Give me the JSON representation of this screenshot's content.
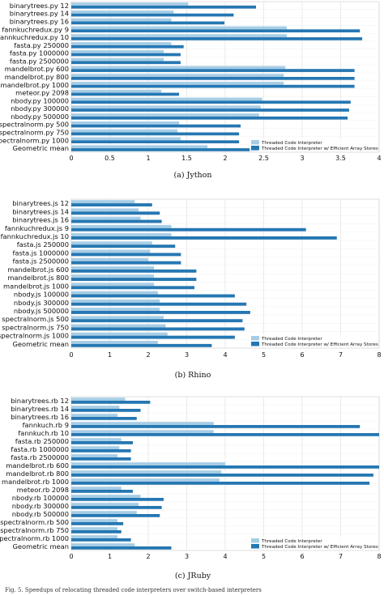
{
  "colors": {
    "series1": "#a6cde6",
    "series2": "#2577b2",
    "grid": "#dcdcdc",
    "frame": "#bfbfbf"
  },
  "chart_data": [
    {
      "type": "bar",
      "orientation": "horizontal",
      "caption": "(a) Jython",
      "categories": [
        "binarytrees.py 12",
        "binarytrees.py 14",
        "binarytrees.py 16",
        "fannkuchredux.py 9",
        "fannkuchredux.py 10",
        "fasta.py 250000",
        "fasta.py 1000000",
        "fasta.py 2500000",
        "mandelbrot.py 600",
        "mandelbrot.py 800",
        "mandelbrot.py 1000",
        "meteor.py 2098",
        "nbody.py 100000",
        "nbody.py 300000",
        "nbody.py 500000",
        "spectralnorm.py 500",
        "spectralnorm.py 750",
        "spectralnorm.py 1000",
        "Geometric mean"
      ],
      "series": [
        {
          "name": "Threaded Code Interpreter",
          "values": [
            1.52,
            1.33,
            1.3,
            2.8,
            2.8,
            1.3,
            1.2,
            1.2,
            2.78,
            2.76,
            2.76,
            1.17,
            2.48,
            2.46,
            2.44,
            1.4,
            1.38,
            1.42,
            1.77
          ]
        },
        {
          "name": "Threaded Code Interpreter w/ Efficient Array Stores",
          "values": [
            2.4,
            2.11,
            1.99,
            3.75,
            3.78,
            1.46,
            1.42,
            1.42,
            3.68,
            3.68,
            3.68,
            1.4,
            3.63,
            3.61,
            3.59,
            2.2,
            2.18,
            2.18,
            2.42
          ]
        }
      ],
      "xlim": [
        0,
        4
      ],
      "xticks": [
        "0",
        "0.5",
        "1",
        "1.5",
        "2",
        "2.5",
        "3",
        "3.5",
        "4"
      ],
      "legend": "bottom-right"
    },
    {
      "type": "bar",
      "orientation": "horizontal",
      "caption": "(b) Rhino",
      "categories": [
        "binarytrees.js 12",
        "binarytrees.js 14",
        "binarytrees.js 16",
        "fannkuchredux.js 9",
        "fannkuchredux.js 10",
        "fasta.js 250000",
        "fasta.js 1000000",
        "fasta.js 2500000",
        "mandelbrot.js 600",
        "mandelbrot.js 800",
        "mandelbrot.js 1000",
        "nbody.js 100000",
        "nbody.js 300000",
        "nbody.js 500000",
        "spectralnorm.js 500",
        "spectralnorm.js 750",
        "spectralnorm.js 1000",
        "Geometric mean"
      ],
      "series": [
        {
          "name": "Threaded Code Interpreter",
          "values": [
            1.65,
            1.75,
            1.8,
            2.6,
            2.6,
            2.1,
            2.05,
            2.0,
            2.15,
            2.15,
            2.15,
            2.25,
            2.3,
            2.3,
            2.4,
            2.45,
            2.5,
            2.25
          ]
        },
        {
          "name": "Threaded Code Interpreter w/ Efficient Array Stores",
          "values": [
            2.1,
            2.3,
            2.35,
            6.1,
            6.9,
            2.7,
            2.85,
            2.85,
            3.25,
            3.25,
            3.2,
            4.25,
            4.55,
            4.65,
            4.45,
            4.5,
            4.25,
            3.65
          ]
        }
      ],
      "xlim": [
        0,
        8
      ],
      "xticks": [
        "0",
        "1",
        "2",
        "3",
        "4",
        "5",
        "6",
        "7",
        "8"
      ],
      "legend": "bottom-right"
    },
    {
      "type": "bar",
      "orientation": "horizontal",
      "caption": "(c) JRuby",
      "categories": [
        "binarytrees.rb 12",
        "binarytrees.rb 14",
        "binarytrees.rb 16",
        "fannkuch.rb 9",
        "fannkuch.rb 10",
        "fasta.rb 250000",
        "fasta.rb 1000000",
        "fasta.rb 2500000",
        "mandelbrot.rb 600",
        "mandelbrot.rb 800",
        "mandelbrot.rb 1000",
        "meteor.rb 2098",
        "nbody.rb 100000",
        "nbody.rb 300000",
        "nbody.rb 500000",
        "spectralnorm.rb 500",
        "spectralnorm.rb 750",
        "spectralnorm.rb 1000",
        "Geometric mean"
      ],
      "series": [
        {
          "name": "Threaded Code Interpreter",
          "values": [
            1.4,
            1.25,
            1.2,
            3.7,
            3.7,
            1.3,
            1.25,
            1.2,
            4.0,
            3.9,
            3.85,
            1.3,
            1.8,
            1.75,
            1.7,
            1.2,
            1.2,
            1.2,
            1.65
          ]
        },
        {
          "name": "Threaded Code Interpreter w/ Efficient Array Stores",
          "values": [
            2.05,
            1.8,
            1.7,
            7.5,
            8.0,
            1.6,
            1.55,
            1.55,
            8.0,
            7.85,
            7.75,
            1.6,
            2.4,
            2.35,
            2.3,
            1.35,
            1.3,
            1.55,
            2.6
          ]
        }
      ],
      "xlim": [
        0,
        8
      ],
      "xticks": [
        "0",
        "1",
        "2",
        "3",
        "4",
        "5",
        "6",
        "7",
        "8"
      ],
      "legend": "bottom-right"
    }
  ],
  "footer_text": "Fig. 5.  Speedups of relocating threaded code interpreters over switch-based interpreters"
}
